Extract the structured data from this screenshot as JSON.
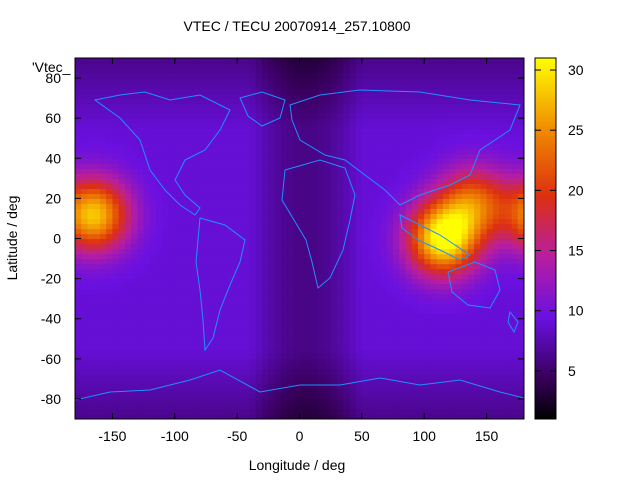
{
  "chart_data": {
    "type": "heatmap",
    "title": "VTEC / TECU 20070914_257.10800",
    "xlabel": "Longitude / deg",
    "ylabel": "Latitude / deg",
    "xlim": [
      -180,
      180
    ],
    "ylim": [
      -90,
      90
    ],
    "x_ticks": [
      -150,
      -100,
      -50,
      0,
      50,
      100,
      150
    ],
    "y_ticks": [
      -80,
      -60,
      -40,
      -20,
      0,
      20,
      40,
      60,
      80
    ],
    "x_tick_labels": [
      "-150",
      "-100",
      "-50",
      "0",
      "50",
      "100",
      "150"
    ],
    "y_tick_labels": [
      "-80",
      "-60",
      "-40",
      "-20",
      "0",
      "20",
      "40",
      "60",
      "80"
    ],
    "series_label": "'Vtec_",
    "colorbar": {
      "range": [
        1,
        31
      ],
      "ticks": [
        5,
        10,
        15,
        20,
        25,
        30
      ],
      "tick_labels": [
        "5",
        "10",
        "15",
        "20",
        "25",
        "30"
      ],
      "colormap": "black-purple-red-orange-yellow"
    },
    "grid": false,
    "coastline_color": "#1e90ff",
    "peaks": [
      {
        "lon": -165,
        "lat": 12,
        "value": 28
      },
      {
        "lon": 115,
        "lat": 0,
        "value": 31
      },
      {
        "lon": 140,
        "lat": 18,
        "value": 22
      }
    ],
    "background_value": 9,
    "trough_lon_range": [
      -40,
      50
    ],
    "trough_value": 4
  }
}
